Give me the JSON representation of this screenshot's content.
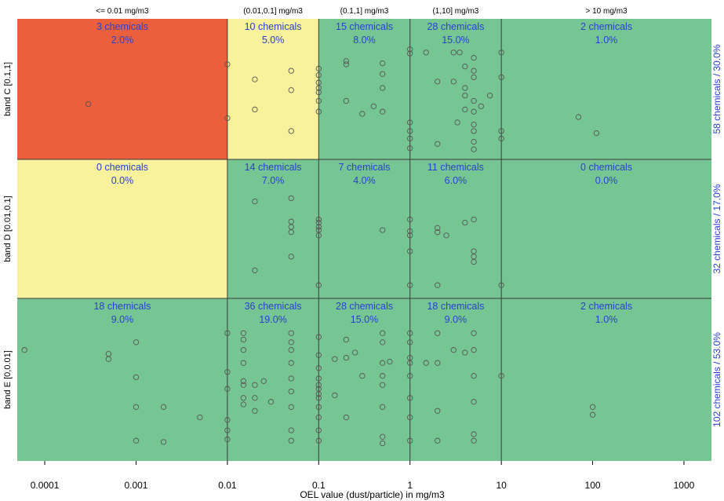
{
  "chart_data": {
    "type": "scatter",
    "xlabel": "OEL value (dust/particle) in mg/m3",
    "x_scale": "log10",
    "xlim": [
      5e-05,
      2000
    ],
    "x_ticks": [
      {
        "value": 0.0001,
        "label": "0.0001"
      },
      {
        "value": 0.001,
        "label": "0.001"
      },
      {
        "value": 0.01,
        "label": "0.01"
      },
      {
        "value": 0.1,
        "label": "0.1"
      },
      {
        "value": 1,
        "label": "1"
      },
      {
        "value": 10,
        "label": "10"
      },
      {
        "value": 100,
        "label": "100"
      },
      {
        "value": 1000,
        "label": "1000"
      }
    ],
    "columns": [
      {
        "label": "<= 0.01 mg/m3",
        "from": 5e-05,
        "to": 0.01
      },
      {
        "label": "(0.01,0.1] mg/m3",
        "from": 0.01,
        "to": 0.1
      },
      {
        "label": "(0.1,1] mg/m3",
        "from": 0.1,
        "to": 1
      },
      {
        "label": "(1,10] mg/m3",
        "from": 1,
        "to": 10
      },
      {
        "label": "> 10 mg/m3",
        "from": 10,
        "to": 2000
      }
    ],
    "bands": [
      {
        "label": "band C [0.1,1]",
        "total_label": "58 chemicals / 30.0%"
      },
      {
        "label": "band D [0.01,0.1]",
        "total_label": "32 chemicals / 17.0%"
      },
      {
        "label": "band E [0,0.01]",
        "total_label": "102 chemicals / 53.0%"
      }
    ],
    "colors": {
      "red": "#ec5f3d",
      "yellow": "#f7f29b",
      "green": "#76c694",
      "label_text": "#2a3fd0"
    },
    "cells": [
      [
        {
          "count": "3 chemicals",
          "percent": "2.0%",
          "color": "red"
        },
        {
          "count": "10 chemicals",
          "percent": "5.0%",
          "color": "yellow"
        },
        {
          "count": "15 chemicals",
          "percent": "8.0%",
          "color": "green"
        },
        {
          "count": "28 chemicals",
          "percent": "15.0%",
          "color": "green"
        },
        {
          "count": "2 chemicals",
          "percent": "1.0%",
          "color": "green"
        }
      ],
      [
        {
          "count": "0 chemicals",
          "percent": "0.0%",
          "color": "yellow"
        },
        {
          "count": "14 chemicals",
          "percent": "7.0%",
          "color": "green"
        },
        {
          "count": "7 chemicals",
          "percent": "4.0%",
          "color": "green"
        },
        {
          "count": "11 chemicals",
          "percent": "6.0%",
          "color": "green"
        },
        {
          "count": "0 chemicals",
          "percent": "0.0%",
          "color": "green"
        }
      ],
      [
        {
          "count": "18 chemicals",
          "percent": "9.0%",
          "color": "green"
        },
        {
          "count": "36 chemicals",
          "percent": "19.0%",
          "color": "green"
        },
        {
          "count": "28 chemicals",
          "percent": "15.0%",
          "color": "green"
        },
        {
          "count": "18 chemicals",
          "percent": "9.0%",
          "color": "green"
        },
        {
          "count": "2 chemicals",
          "percent": "1.0%",
          "color": "green"
        }
      ]
    ],
    "grid_lines_x": [
      0.01,
      0.1,
      1,
      10
    ],
    "points": [
      {
        "band": 0,
        "x": 0.0003,
        "level": 0.47
      },
      {
        "band": 0,
        "x": 0.01,
        "level": 0.84
      },
      {
        "band": 0,
        "x": 0.01,
        "level": 0.34
      },
      {
        "band": 0,
        "x": 0.02,
        "level": 0.42
      },
      {
        "band": 0,
        "x": 0.02,
        "level": 0.7
      },
      {
        "band": 0,
        "x": 0.05,
        "level": 0.78
      },
      {
        "band": 0,
        "x": 0.05,
        "level": 0.6
      },
      {
        "band": 0,
        "x": 0.05,
        "level": 0.22
      },
      {
        "band": 0,
        "x": 0.1,
        "level": 0.4
      },
      {
        "band": 0,
        "x": 0.1,
        "level": 0.5
      },
      {
        "band": 0,
        "x": 0.1,
        "level": 0.58
      },
      {
        "band": 0,
        "x": 0.1,
        "level": 0.62
      },
      {
        "band": 0,
        "x": 0.1,
        "level": 0.67
      },
      {
        "band": 0,
        "x": 0.1,
        "level": 0.74
      },
      {
        "band": 0,
        "x": 0.1,
        "level": 0.8
      },
      {
        "band": 0,
        "x": 0.2,
        "level": 0.84
      },
      {
        "band": 0,
        "x": 0.2,
        "level": 0.87
      },
      {
        "band": 0,
        "x": 0.2,
        "level": 0.5
      },
      {
        "band": 0,
        "x": 0.3,
        "level": 0.38
      },
      {
        "band": 0,
        "x": 0.4,
        "level": 0.45
      },
      {
        "band": 0,
        "x": 0.5,
        "level": 0.85
      },
      {
        "band": 0,
        "x": 0.5,
        "level": 0.75
      },
      {
        "band": 0,
        "x": 0.5,
        "level": 0.62
      },
      {
        "band": 0,
        "x": 0.5,
        "level": 0.4
      },
      {
        "band": 0,
        "x": 1,
        "level": 0.98
      },
      {
        "band": 0,
        "x": 1,
        "level": 0.94
      },
      {
        "band": 0,
        "x": 1,
        "level": 0.3
      },
      {
        "band": 0,
        "x": 1,
        "level": 0.22
      },
      {
        "band": 0,
        "x": 1,
        "level": 0.15
      },
      {
        "band": 0,
        "x": 1,
        "level": 0.06
      },
      {
        "band": 0,
        "x": 1.5,
        "level": 0.95
      },
      {
        "band": 0,
        "x": 2,
        "level": 0.68
      },
      {
        "band": 0,
        "x": 2,
        "level": 0.1
      },
      {
        "band": 0,
        "x": 3,
        "level": 0.95
      },
      {
        "band": 0,
        "x": 3,
        "level": 0.68
      },
      {
        "band": 0,
        "x": 3.3,
        "level": 0.3
      },
      {
        "band": 0,
        "x": 3.5,
        "level": 0.95
      },
      {
        "band": 0,
        "x": 4,
        "level": 0.82
      },
      {
        "band": 0,
        "x": 4,
        "level": 0.62
      },
      {
        "band": 0,
        "x": 4,
        "level": 0.55
      },
      {
        "band": 0,
        "x": 4,
        "level": 0.42
      },
      {
        "band": 0,
        "x": 5,
        "level": 0.9
      },
      {
        "band": 0,
        "x": 5,
        "level": 0.78
      },
      {
        "band": 0,
        "x": 5,
        "level": 0.72
      },
      {
        "band": 0,
        "x": 5,
        "level": 0.5
      },
      {
        "band": 0,
        "x": 5,
        "level": 0.4
      },
      {
        "band": 0,
        "x": 5,
        "level": 0.28
      },
      {
        "band": 0,
        "x": 5,
        "level": 0.22
      },
      {
        "band": 0,
        "x": 5,
        "level": 0.12
      },
      {
        "band": 0,
        "x": 5,
        "level": 0.05
      },
      {
        "band": 0,
        "x": 6,
        "level": 0.45
      },
      {
        "band": 0,
        "x": 7.5,
        "level": 0.55
      },
      {
        "band": 0,
        "x": 10,
        "level": 0.95
      },
      {
        "band": 0,
        "x": 10,
        "level": 0.72
      },
      {
        "band": 0,
        "x": 10,
        "level": 0.22
      },
      {
        "band": 0,
        "x": 10,
        "level": 0.15
      },
      {
        "band": 0,
        "x": 70,
        "level": 0.35
      },
      {
        "band": 0,
        "x": 110,
        "level": 0.2
      },
      {
        "band": 1,
        "x": 0.02,
        "level": 0.87
      },
      {
        "band": 1,
        "x": 0.02,
        "level": 0.22
      },
      {
        "band": 1,
        "x": 0.05,
        "level": 0.9
      },
      {
        "band": 1,
        "x": 0.05,
        "level": 0.68
      },
      {
        "band": 1,
        "x": 0.05,
        "level": 0.63
      },
      {
        "band": 1,
        "x": 0.05,
        "level": 0.58
      },
      {
        "band": 1,
        "x": 0.05,
        "level": 0.35
      },
      {
        "band": 1,
        "x": 0.1,
        "level": 0.7
      },
      {
        "band": 1,
        "x": 0.1,
        "level": 0.67
      },
      {
        "band": 1,
        "x": 0.1,
        "level": 0.63
      },
      {
        "band": 1,
        "x": 0.1,
        "level": 0.6
      },
      {
        "band": 1,
        "x": 0.1,
        "level": 0.55
      },
      {
        "band": 1,
        "x": 0.1,
        "level": 0.08
      },
      {
        "band": 1,
        "x": 0.5,
        "level": 0.6
      },
      {
        "band": 1,
        "x": 1,
        "level": 0.7
      },
      {
        "band": 1,
        "x": 1,
        "level": 0.59
      },
      {
        "band": 1,
        "x": 1,
        "level": 0.55
      },
      {
        "band": 1,
        "x": 1,
        "level": 0.4
      },
      {
        "band": 1,
        "x": 1,
        "level": 0.08
      },
      {
        "band": 1,
        "x": 2,
        "level": 0.62
      },
      {
        "band": 1,
        "x": 2,
        "level": 0.58
      },
      {
        "band": 1,
        "x": 2.5,
        "level": 0.55
      },
      {
        "band": 1,
        "x": 2,
        "level": 0.08
      },
      {
        "band": 1,
        "x": 4,
        "level": 0.67
      },
      {
        "band": 1,
        "x": 5,
        "level": 0.7
      },
      {
        "band": 1,
        "x": 5,
        "level": 0.4
      },
      {
        "band": 1,
        "x": 5,
        "level": 0.35
      },
      {
        "band": 1,
        "x": 5,
        "level": 0.3
      },
      {
        "band": 1,
        "x": 10,
        "level": 0.08
      },
      {
        "band": 2,
        "x": 6e-05,
        "level": 0.82
      },
      {
        "band": 2,
        "x": 0.0005,
        "level": 0.79
      },
      {
        "band": 2,
        "x": 0.0005,
        "level": 0.75
      },
      {
        "band": 2,
        "x": 0.001,
        "level": 0.88
      },
      {
        "band": 2,
        "x": 0.001,
        "level": 0.61
      },
      {
        "band": 2,
        "x": 0.001,
        "level": 0.38
      },
      {
        "band": 2,
        "x": 0.001,
        "level": 0.12
      },
      {
        "band": 2,
        "x": 0.002,
        "level": 0.38
      },
      {
        "band": 2,
        "x": 0.002,
        "level": 0.11
      },
      {
        "band": 2,
        "x": 0.005,
        "level": 0.3
      },
      {
        "band": 2,
        "x": 0.01,
        "level": 0.95
      },
      {
        "band": 2,
        "x": 0.01,
        "level": 0.65
      },
      {
        "band": 2,
        "x": 0.01,
        "level": 0.52
      },
      {
        "band": 2,
        "x": 0.01,
        "level": 0.28
      },
      {
        "band": 2,
        "x": 0.01,
        "level": 0.2
      },
      {
        "band": 2,
        "x": 0.01,
        "level": 0.13
      },
      {
        "band": 2,
        "x": 0.015,
        "level": 0.95
      },
      {
        "band": 2,
        "x": 0.015,
        "level": 0.9
      },
      {
        "band": 2,
        "x": 0.015,
        "level": 0.82
      },
      {
        "band": 2,
        "x": 0.015,
        "level": 0.72
      },
      {
        "band": 2,
        "x": 0.015,
        "level": 0.58
      },
      {
        "band": 2,
        "x": 0.015,
        "level": 0.55
      },
      {
        "band": 2,
        "x": 0.015,
        "level": 0.45
      },
      {
        "band": 2,
        "x": 0.015,
        "level": 0.4
      },
      {
        "band": 2,
        "x": 0.02,
        "level": 0.55
      },
      {
        "band": 2,
        "x": 0.02,
        "level": 0.45
      },
      {
        "band": 2,
        "x": 0.02,
        "level": 0.35
      },
      {
        "band": 2,
        "x": 0.025,
        "level": 0.58
      },
      {
        "band": 2,
        "x": 0.03,
        "level": 0.42
      },
      {
        "band": 2,
        "x": 0.05,
        "level": 0.95
      },
      {
        "band": 2,
        "x": 0.05,
        "level": 0.88
      },
      {
        "band": 2,
        "x": 0.05,
        "level": 0.82
      },
      {
        "band": 2,
        "x": 0.05,
        "level": 0.72
      },
      {
        "band": 2,
        "x": 0.05,
        "level": 0.6
      },
      {
        "band": 2,
        "x": 0.05,
        "level": 0.5
      },
      {
        "band": 2,
        "x": 0.05,
        "level": 0.38
      },
      {
        "band": 2,
        "x": 0.05,
        "level": 0.2
      },
      {
        "band": 2,
        "x": 0.05,
        "level": 0.12
      },
      {
        "band": 2,
        "x": 0.1,
        "level": 0.92
      },
      {
        "band": 2,
        "x": 0.1,
        "level": 0.78
      },
      {
        "band": 2,
        "x": 0.1,
        "level": 0.68
      },
      {
        "band": 2,
        "x": 0.1,
        "level": 0.6
      },
      {
        "band": 2,
        "x": 0.1,
        "level": 0.55
      },
      {
        "band": 2,
        "x": 0.1,
        "level": 0.52
      },
      {
        "band": 2,
        "x": 0.1,
        "level": 0.48
      },
      {
        "band": 2,
        "x": 0.1,
        "level": 0.45
      },
      {
        "band": 2,
        "x": 0.1,
        "level": 0.38
      },
      {
        "band": 2,
        "x": 0.1,
        "level": 0.3
      },
      {
        "band": 2,
        "x": 0.1,
        "level": 0.2
      },
      {
        "band": 2,
        "x": 0.1,
        "level": 0.12
      },
      {
        "band": 2,
        "x": 0.15,
        "level": 0.75
      },
      {
        "band": 2,
        "x": 0.15,
        "level": 0.47
      },
      {
        "band": 2,
        "x": 0.2,
        "level": 0.9
      },
      {
        "band": 2,
        "x": 0.2,
        "level": 0.76
      },
      {
        "band": 2,
        "x": 0.2,
        "level": 0.3
      },
      {
        "band": 2,
        "x": 0.25,
        "level": 0.8
      },
      {
        "band": 2,
        "x": 0.3,
        "level": 0.62
      },
      {
        "band": 2,
        "x": 0.5,
        "level": 0.95
      },
      {
        "band": 2,
        "x": 0.5,
        "level": 0.88
      },
      {
        "band": 2,
        "x": 0.5,
        "level": 0.72
      },
      {
        "band": 2,
        "x": 0.5,
        "level": 0.62
      },
      {
        "band": 2,
        "x": 0.5,
        "level": 0.55
      },
      {
        "band": 2,
        "x": 0.5,
        "level": 0.38
      },
      {
        "band": 2,
        "x": 0.5,
        "level": 0.15
      },
      {
        "band": 2,
        "x": 0.5,
        "level": 0.1
      },
      {
        "band": 2,
        "x": 0.6,
        "level": 0.73
      },
      {
        "band": 2,
        "x": 1,
        "level": 0.95
      },
      {
        "band": 2,
        "x": 1,
        "level": 0.88
      },
      {
        "band": 2,
        "x": 1,
        "level": 0.76
      },
      {
        "band": 2,
        "x": 1,
        "level": 0.72
      },
      {
        "band": 2,
        "x": 1,
        "level": 0.62
      },
      {
        "band": 2,
        "x": 1,
        "level": 0.45
      },
      {
        "band": 2,
        "x": 1,
        "level": 0.3
      },
      {
        "band": 2,
        "x": 1,
        "level": 0.12
      },
      {
        "band": 2,
        "x": 1.5,
        "level": 0.72
      },
      {
        "band": 2,
        "x": 2,
        "level": 0.95
      },
      {
        "band": 2,
        "x": 2,
        "level": 0.72
      },
      {
        "band": 2,
        "x": 2,
        "level": 0.35
      },
      {
        "band": 2,
        "x": 2,
        "level": 0.12
      },
      {
        "band": 2,
        "x": 3,
        "level": 0.82
      },
      {
        "band": 2,
        "x": 4,
        "level": 0.8
      },
      {
        "band": 2,
        "x": 5,
        "level": 0.95
      },
      {
        "band": 2,
        "x": 5,
        "level": 0.82
      },
      {
        "band": 2,
        "x": 5,
        "level": 0.62
      },
      {
        "band": 2,
        "x": 5,
        "level": 0.42
      },
      {
        "band": 2,
        "x": 5,
        "level": 0.17
      },
      {
        "band": 2,
        "x": 5,
        "level": 0.12
      },
      {
        "band": 2,
        "x": 10,
        "level": 0.62
      },
      {
        "band": 2,
        "x": 100,
        "level": 0.38
      },
      {
        "band": 2,
        "x": 100,
        "level": 0.32
      }
    ]
  }
}
